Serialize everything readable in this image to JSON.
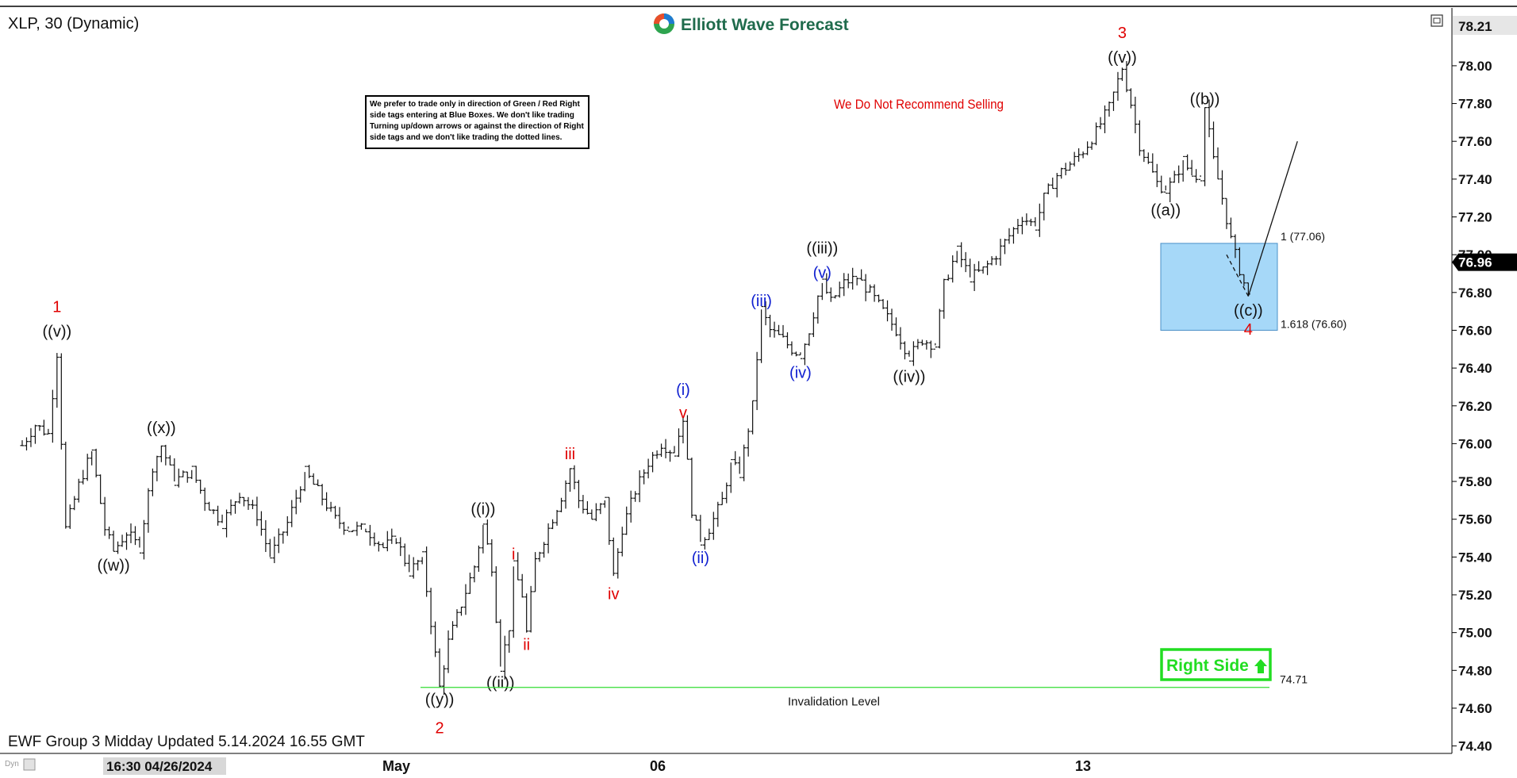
{
  "header": {
    "symbol_title": "XLP, 30 (Dynamic)",
    "logo_text": "Elliott Wave Forecast",
    "minimize_icon": "restore-window-icon"
  },
  "notes": {
    "rules_box": [
      "We prefer to trade only in direction of Green / Red Right",
      "side tags entering at Blue Boxes. We don't like trading",
      "Turning up/down arrows or against the direction of Right",
      "side tags and we don't like trading the dotted lines."
    ],
    "no_sell": "We Do Not Recommend Selling",
    "invalidation": "Invalidation Level",
    "invalidation_value": "74.71",
    "right_side": "Right Side",
    "fib_1": "1 (77.06)",
    "fib_1618": "1.618 (76.60)",
    "footer": "EWF Group 3 Midday Updated 5.14.2024 16.55 GMT"
  },
  "axis": {
    "price_ticks": [
      "78.00",
      "77.80",
      "77.60",
      "77.40",
      "77.20",
      "77.00",
      "76.80",
      "76.60",
      "76.40",
      "76.20",
      "76.00",
      "75.80",
      "75.60",
      "75.40",
      "75.20",
      "75.00",
      "74.80",
      "74.60",
      "74.40"
    ],
    "top_price_tag": "78.21",
    "current_price_tag": "76.96",
    "time_labels": [
      "16:30 04/26/2024",
      "May",
      "06",
      "13"
    ],
    "corner_label": "Dyn"
  },
  "colors": {
    "wave_red": "#e00000",
    "wave_blue": "#1020d0",
    "wave_black": "#111111",
    "blue_box": "#a6d8f8",
    "right_side_green": "#22dd22",
    "invalidation_line": "#33dd33"
  },
  "chart_data": {
    "type": "ohlc",
    "symbol": "XLP",
    "timeframe": "30",
    "ylim": [
      74.4,
      78.21
    ],
    "last_price": 76.96,
    "blue_box": {
      "top": 77.06,
      "bottom": 76.6,
      "labels": [
        "1 (77.06)",
        "1.618 (76.60)"
      ]
    },
    "invalidation_level": 74.71,
    "wave_labels": [
      {
        "text": "1",
        "color": "red",
        "bar": 8,
        "price": 76.68,
        "pos": "above"
      },
      {
        "text": "((v))",
        "color": "black",
        "bar": 8,
        "price": 76.55,
        "pos": "above"
      },
      {
        "text": "((x))",
        "color": "black",
        "bar": 32,
        "price": 76.04,
        "pos": "above"
      },
      {
        "text": "((w))",
        "color": "black",
        "bar": 21,
        "price": 75.42,
        "pos": "below"
      },
      {
        "text": "((y))",
        "color": "black",
        "bar": 96,
        "price": 74.71,
        "pos": "below"
      },
      {
        "text": "2",
        "color": "red",
        "bar": 96,
        "price": 74.56,
        "pos": "below"
      },
      {
        "text": "((i))",
        "color": "black",
        "bar": 106,
        "price": 75.61,
        "pos": "above"
      },
      {
        "text": "((ii))",
        "color": "black",
        "bar": 110,
        "price": 74.8,
        "pos": "below"
      },
      {
        "text": "i",
        "color": "red",
        "bar": 113,
        "price": 75.37,
        "pos": "above"
      },
      {
        "text": "ii",
        "color": "red",
        "bar": 116,
        "price": 75.0,
        "pos": "below"
      },
      {
        "text": "iii",
        "color": "red",
        "bar": 126,
        "price": 75.9,
        "pos": "above"
      },
      {
        "text": "iv",
        "color": "red",
        "bar": 136,
        "price": 75.27,
        "pos": "below"
      },
      {
        "text": "v",
        "color": "red",
        "bar": 152,
        "price": 76.12,
        "pos": "above"
      },
      {
        "text": "(i)",
        "color": "blue",
        "bar": 152,
        "price": 76.24,
        "pos": "above"
      },
      {
        "text": "(ii)",
        "color": "blue",
        "bar": 156,
        "price": 75.46,
        "pos": "below"
      },
      {
        "text": "(iii)",
        "color": "blue",
        "bar": 170,
        "price": 76.71,
        "pos": "above"
      },
      {
        "text": "(iv)",
        "color": "blue",
        "bar": 179,
        "price": 76.44,
        "pos": "below"
      },
      {
        "text": "(v)",
        "color": "blue",
        "bar": 184,
        "price": 76.86,
        "pos": "above"
      },
      {
        "text": "((iii))",
        "color": "black",
        "bar": 184,
        "price": 76.99,
        "pos": "above"
      },
      {
        "text": "((iv))",
        "color": "black",
        "bar": 204,
        "price": 76.42,
        "pos": "below"
      },
      {
        "text": "((v))",
        "color": "black",
        "bar": 253,
        "price": 78.0,
        "pos": "above"
      },
      {
        "text": "3",
        "color": "red",
        "bar": 253,
        "price": 78.13,
        "pos": "above"
      },
      {
        "text": "((a))",
        "color": "black",
        "bar": 263,
        "price": 77.3,
        "pos": "below"
      },
      {
        "text": "((b))",
        "color": "black",
        "bar": 272,
        "price": 77.78,
        "pos": "above"
      },
      {
        "text": "((c))",
        "color": "black",
        "bar": 282,
        "price": 76.77,
        "pos": "below"
      },
      {
        "text": "4",
        "color": "red",
        "bar": 282,
        "price": 76.67,
        "pos": "below"
      }
    ],
    "path_points": [
      [
        0,
        75.99
      ],
      [
        3,
        76.1
      ],
      [
        6,
        76.05
      ],
      [
        8,
        76.48
      ],
      [
        10,
        75.55
      ],
      [
        13,
        75.78
      ],
      [
        16,
        75.96
      ],
      [
        19,
        75.55
      ],
      [
        21,
        75.43
      ],
      [
        24,
        75.53
      ],
      [
        27,
        75.45
      ],
      [
        30,
        75.88
      ],
      [
        32,
        75.99
      ],
      [
        35,
        75.8
      ],
      [
        39,
        75.86
      ],
      [
        42,
        75.7
      ],
      [
        46,
        75.58
      ],
      [
        50,
        75.74
      ],
      [
        54,
        75.62
      ],
      [
        57,
        75.4
      ],
      [
        61,
        75.58
      ],
      [
        65,
        75.85
      ],
      [
        68,
        75.75
      ],
      [
        72,
        75.6
      ],
      [
        75,
        75.55
      ],
      [
        79,
        75.55
      ],
      [
        83,
        75.45
      ],
      [
        86,
        75.5
      ],
      [
        89,
        75.32
      ],
      [
        92,
        75.4
      ],
      [
        96,
        74.71
      ],
      [
        98,
        74.95
      ],
      [
        101,
        75.15
      ],
      [
        104,
        75.35
      ],
      [
        106,
        75.57
      ],
      [
        108,
        75.35
      ],
      [
        110,
        74.82
      ],
      [
        112,
        75.03
      ],
      [
        113,
        75.35
      ],
      [
        115,
        75.2
      ],
      [
        116,
        75.0
      ],
      [
        118,
        75.38
      ],
      [
        121,
        75.55
      ],
      [
        124,
        75.72
      ],
      [
        126,
        75.87
      ],
      [
        128,
        75.7
      ],
      [
        131,
        75.6
      ],
      [
        134,
        75.7
      ],
      [
        136,
        75.3
      ],
      [
        138,
        75.55
      ],
      [
        141,
        75.75
      ],
      [
        144,
        75.9
      ],
      [
        147,
        76.0
      ],
      [
        150,
        75.95
      ],
      [
        152,
        76.14
      ],
      [
        154,
        75.65
      ],
      [
        156,
        75.48
      ],
      [
        158,
        75.55
      ],
      [
        161,
        75.7
      ],
      [
        163,
        75.9
      ],
      [
        165,
        75.84
      ],
      [
        168,
        76.2
      ],
      [
        170,
        76.71
      ],
      [
        172,
        76.6
      ],
      [
        175,
        76.55
      ],
      [
        177,
        76.5
      ],
      [
        179,
        76.47
      ],
      [
        181,
        76.6
      ],
      [
        183,
        76.78
      ],
      [
        184,
        76.85
      ],
      [
        186,
        76.75
      ],
      [
        189,
        76.85
      ],
      [
        192,
        76.88
      ],
      [
        195,
        76.8
      ],
      [
        198,
        76.7
      ],
      [
        201,
        76.6
      ],
      [
        204,
        76.46
      ],
      [
        207,
        76.55
      ],
      [
        210,
        76.52
      ],
      [
        212,
        76.84
      ],
      [
        215,
        77.02
      ],
      [
        218,
        76.88
      ],
      [
        221,
        76.92
      ],
      [
        224,
        77.0
      ],
      [
        227,
        77.1
      ],
      [
        230,
        77.2
      ],
      [
        233,
        77.15
      ],
      [
        235,
        77.3
      ],
      [
        238,
        77.42
      ],
      [
        241,
        77.48
      ],
      [
        244,
        77.55
      ],
      [
        247,
        77.65
      ],
      [
        250,
        77.78
      ],
      [
        253,
        77.99
      ],
      [
        255,
        77.8
      ],
      [
        257,
        77.58
      ],
      [
        259,
        77.48
      ],
      [
        261,
        77.38
      ],
      [
        263,
        77.34
      ],
      [
        265,
        77.4
      ],
      [
        267,
        77.5
      ],
      [
        269,
        77.42
      ],
      [
        271,
        77.42
      ],
      [
        272,
        77.78
      ],
      [
        274,
        77.5
      ],
      [
        276,
        77.3
      ],
      [
        278,
        77.08
      ],
      [
        280,
        76.92
      ],
      [
        282,
        76.78
      ]
    ],
    "projection": [
      [
        282,
        76.78
      ],
      [
        286,
        77.6
      ]
    ]
  }
}
